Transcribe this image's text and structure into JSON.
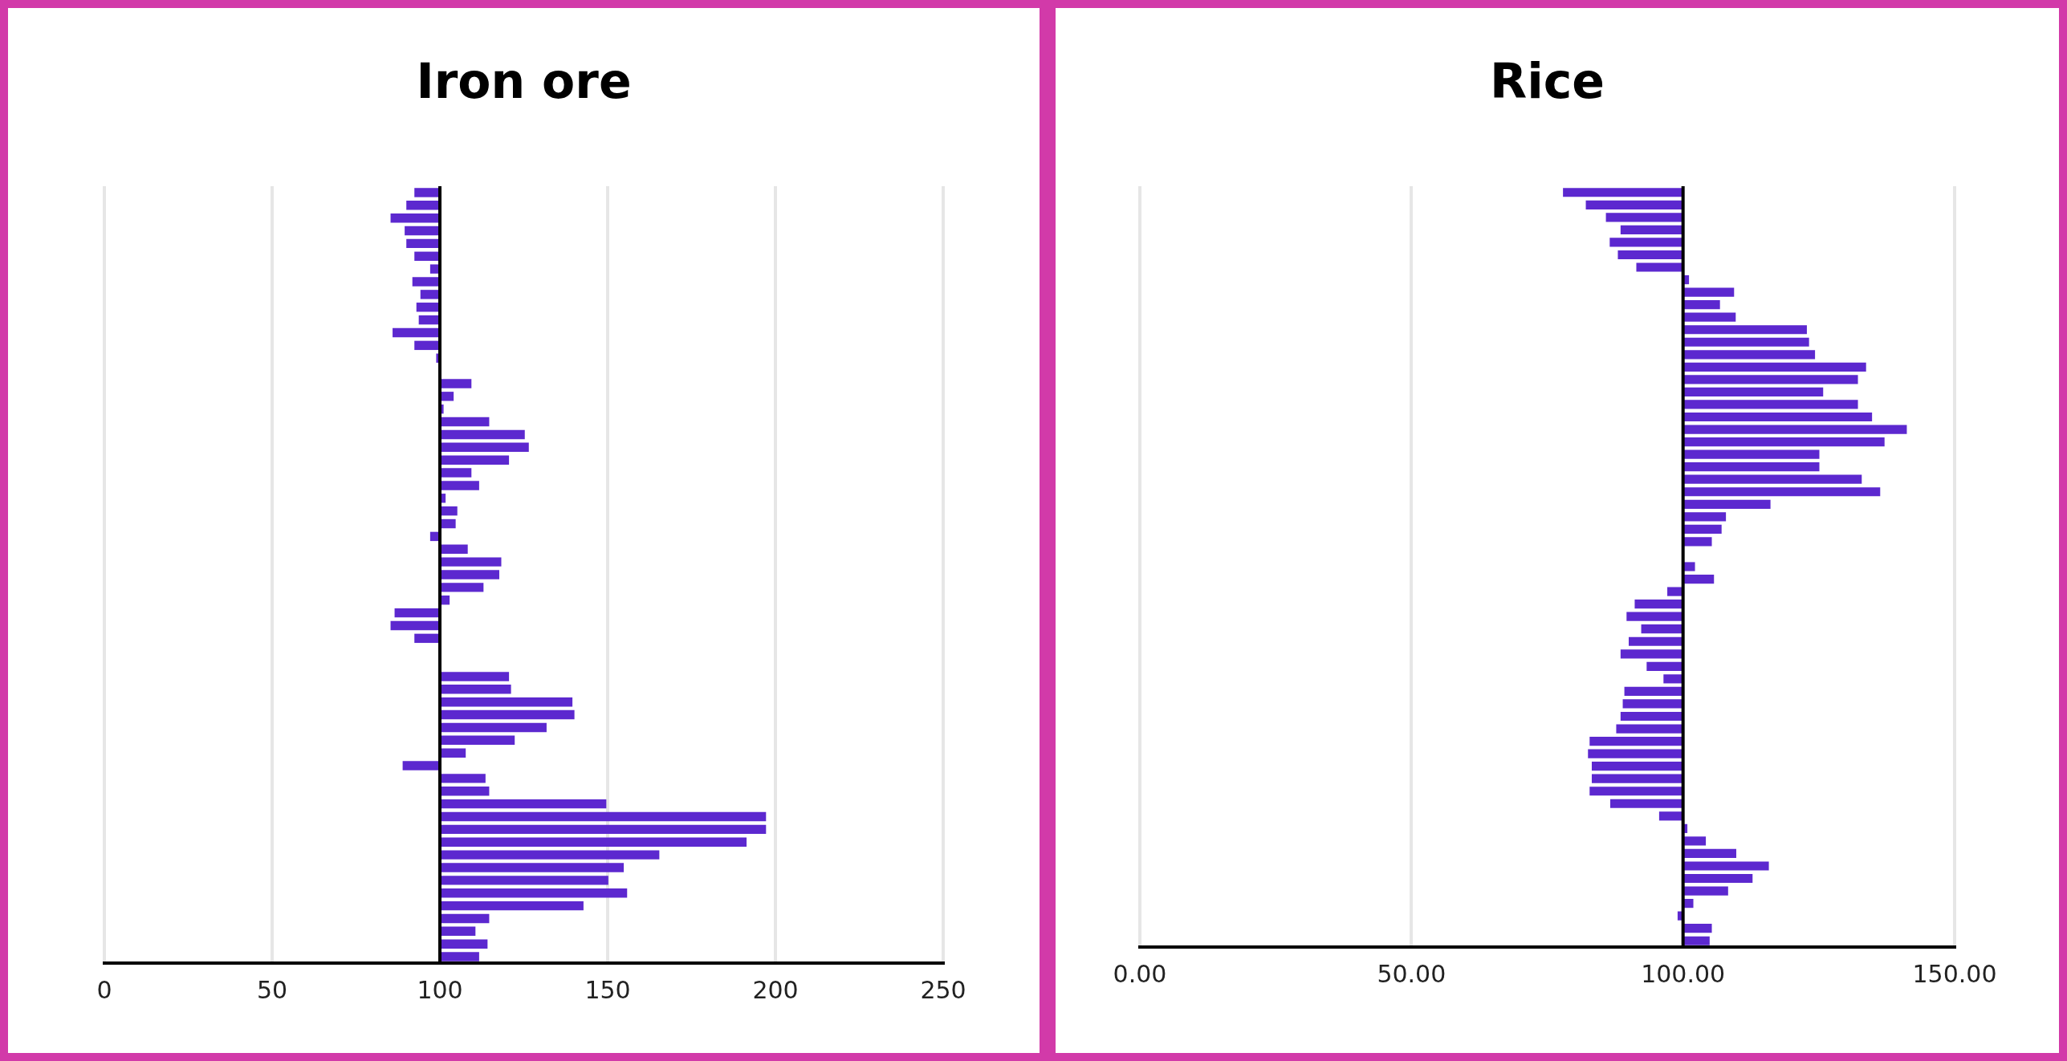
{
  "chart_data": [
    {
      "type": "bar",
      "title": "Iron ore",
      "orientation": "horizontal",
      "color": "#5c28cf",
      "tick_labels": "x",
      "grid": "x",
      "categories": [
        null,
        null,
        null,
        null,
        null,
        null,
        null,
        null,
        null,
        null,
        null,
        null,
        null,
        null,
        null,
        null,
        null,
        null,
        null,
        null,
        null,
        null,
        null,
        null,
        null,
        null,
        null,
        null,
        null,
        null,
        null,
        null,
        null,
        null,
        null,
        null,
        null,
        null,
        null,
        null,
        null,
        null,
        null,
        null,
        null,
        null,
        null,
        null,
        null,
        null,
        null,
        null,
        null,
        null,
        null,
        null,
        null,
        null,
        null,
        null,
        null
      ],
      "base": [
        100,
        100,
        100,
        100,
        100,
        100,
        100,
        100,
        100,
        100,
        100,
        100,
        100,
        100,
        null,
        100,
        100,
        100,
        100,
        100,
        100,
        100,
        100,
        100,
        100,
        100,
        100,
        100,
        100,
        100,
        100,
        100,
        100,
        100,
        100,
        100,
        null,
        null,
        100,
        100,
        100,
        100,
        100,
        100,
        100,
        100,
        100,
        100,
        100,
        100,
        100,
        100,
        100,
        100,
        100,
        100,
        100,
        100,
        100,
        100,
        100
      ],
      "values": [
        -7.6,
        -10,
        -14.7,
        -10.5,
        -10,
        -7.6,
        -2.9,
        -8.2,
        -5.8,
        -7,
        -6.3,
        -14.1,
        -7.6,
        -1.1,
        null,
        9.4,
        4.1,
        1.1,
        14.7,
        25.3,
        26.5,
        20.6,
        9.4,
        11.7,
        1.7,
        5.2,
        4.7,
        -2.9,
        8.3,
        18.3,
        17.7,
        13,
        2.9,
        -13.5,
        -14.7,
        -7.6,
        null,
        null,
        20.6,
        21.2,
        39.5,
        40.1,
        31.8,
        22.3,
        7.7,
        -11.1,
        13.6,
        14.7,
        49.6,
        97.2,
        97.2,
        91.4,
        65.4,
        54.8,
        50.2,
        55.8,
        42.8,
        14.7,
        10.6,
        14.2,
        11.7
      ],
      "xlim": [
        0,
        250
      ],
      "xticks": [
        0,
        50,
        100,
        150,
        200,
        250
      ],
      "ref_lines": [
        {
          "axis": "x",
          "value": 100,
          "color": "#000000"
        }
      ]
    },
    {
      "type": "bar",
      "title": "Rice",
      "orientation": "horizontal",
      "color": "#5c28cf",
      "tick_labels": "x",
      "grid": "x",
      "categories": [
        null,
        null,
        null,
        null,
        null,
        null,
        null,
        null,
        null,
        null,
        null,
        null,
        null,
        null,
        null,
        null,
        null,
        null,
        null,
        null,
        null,
        null,
        null,
        null,
        null,
        null,
        null,
        null,
        null,
        null,
        null,
        null,
        null,
        null,
        null,
        null,
        null,
        null,
        null,
        null,
        null,
        null,
        null,
        null,
        null,
        null,
        null,
        null,
        null,
        null,
        null,
        null,
        null,
        null,
        null,
        null,
        null,
        null,
        null,
        null,
        null
      ],
      "base": [
        100,
        100,
        100,
        100,
        100,
        100,
        100,
        100,
        100,
        100,
        100,
        100,
        100,
        100,
        100,
        100,
        100,
        100,
        100,
        100,
        100,
        100,
        100,
        100,
        100,
        100,
        100,
        100,
        100,
        null,
        100,
        100,
        100,
        100,
        100,
        100,
        100,
        100,
        100,
        100,
        100,
        100,
        100,
        100,
        100,
        100,
        100,
        100,
        100,
        100,
        100,
        100,
        100,
        100,
        100,
        100,
        100,
        100,
        100,
        100,
        100
      ],
      "values": [
        -22.1,
        -17.9,
        -14.2,
        -11.5,
        -13.5,
        -12,
        -8.6,
        1.1,
        9.4,
        6.8,
        9.7,
        22.8,
        23.2,
        24.3,
        33.7,
        32.2,
        25.8,
        32.2,
        34.8,
        41.2,
        37.1,
        25.1,
        25.1,
        32.9,
        36.3,
        16.1,
        7.9,
        7.1,
        5.3,
        null,
        2.2,
        5.7,
        -2.9,
        -8.9,
        -10.4,
        -7.7,
        -10,
        -11.5,
        -6.7,
        -3.6,
        -10.8,
        -11.1,
        -11.5,
        -12.3,
        -17.2,
        -17.5,
        -16.8,
        -16.8,
        -17.2,
        -13.4,
        -4.4,
        0.8,
        4.2,
        9.8,
        15.8,
        12.8,
        8.3,
        1.9,
        -1,
        5.3,
        4.9
      ],
      "xlim": [
        0,
        150
      ],
      "xticks": [
        {
          "value": 0,
          "label": "0.00"
        },
        {
          "value": 50,
          "label": "50.00"
        },
        {
          "value": 100,
          "label": "100.00"
        },
        {
          "value": 150,
          "label": "150.00"
        }
      ],
      "ref_lines": [
        {
          "axis": "x",
          "value": 100,
          "color": "#000000"
        }
      ]
    }
  ]
}
